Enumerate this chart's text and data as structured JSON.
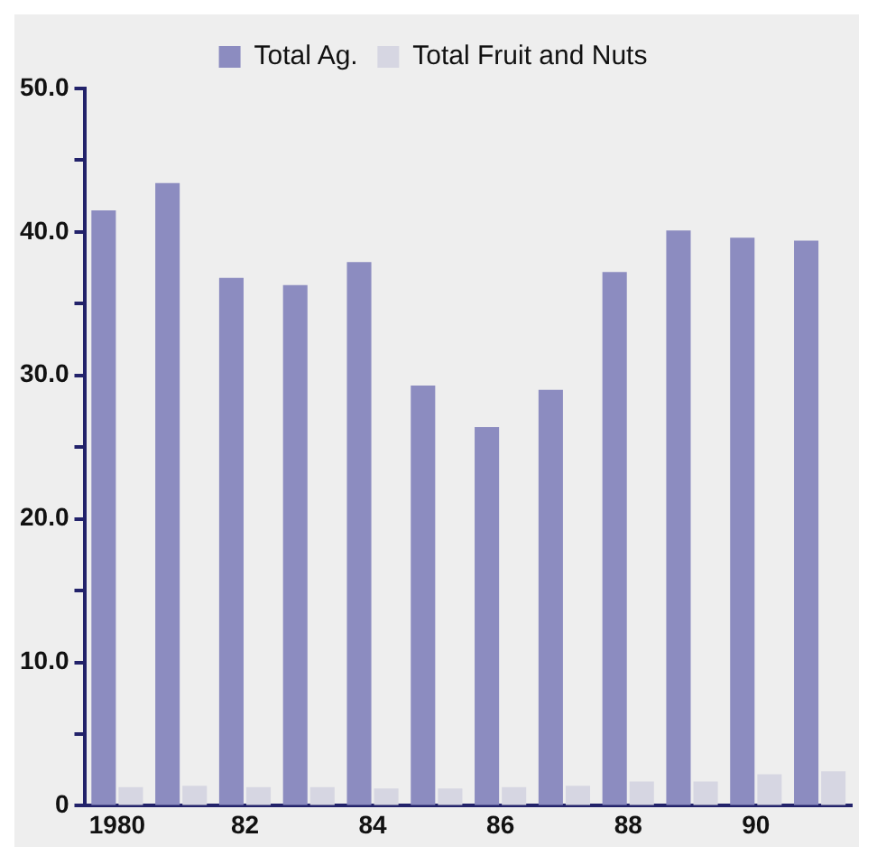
{
  "chart_data": {
    "type": "bar",
    "categories": [
      "1980",
      null,
      "82",
      null,
      "84",
      null,
      "86",
      null,
      "88",
      null,
      "90",
      null
    ],
    "series": [
      {
        "name": "Total Ag.",
        "color": "#8c8cc0",
        "values": [
          41.5,
          43.4,
          36.8,
          36.3,
          37.9,
          29.3,
          26.4,
          29.0,
          37.2,
          40.1,
          39.6,
          39.4
        ]
      },
      {
        "name": "Total Fruit and Nuts",
        "color": "#d6d6e2",
        "values": [
          1.3,
          1.4,
          1.3,
          1.3,
          1.2,
          1.2,
          1.3,
          1.4,
          1.7,
          1.7,
          2.2,
          2.4
        ]
      }
    ],
    "ylim": [
      0,
      50
    ],
    "yticks": [
      {
        "value": 0,
        "label": "0"
      },
      {
        "value": 5,
        "label": null
      },
      {
        "value": 10,
        "label": "10.0"
      },
      {
        "value": 15,
        "label": null
      },
      {
        "value": 20,
        "label": "20.0"
      },
      {
        "value": 25,
        "label": null
      },
      {
        "value": 30,
        "label": "30.0"
      },
      {
        "value": 35,
        "label": null
      },
      {
        "value": 40,
        "label": "40.0"
      },
      {
        "value": 45,
        "label": null
      },
      {
        "value": 50,
        "label": "50.0"
      }
    ],
    "grid": false,
    "legend": "top"
  }
}
